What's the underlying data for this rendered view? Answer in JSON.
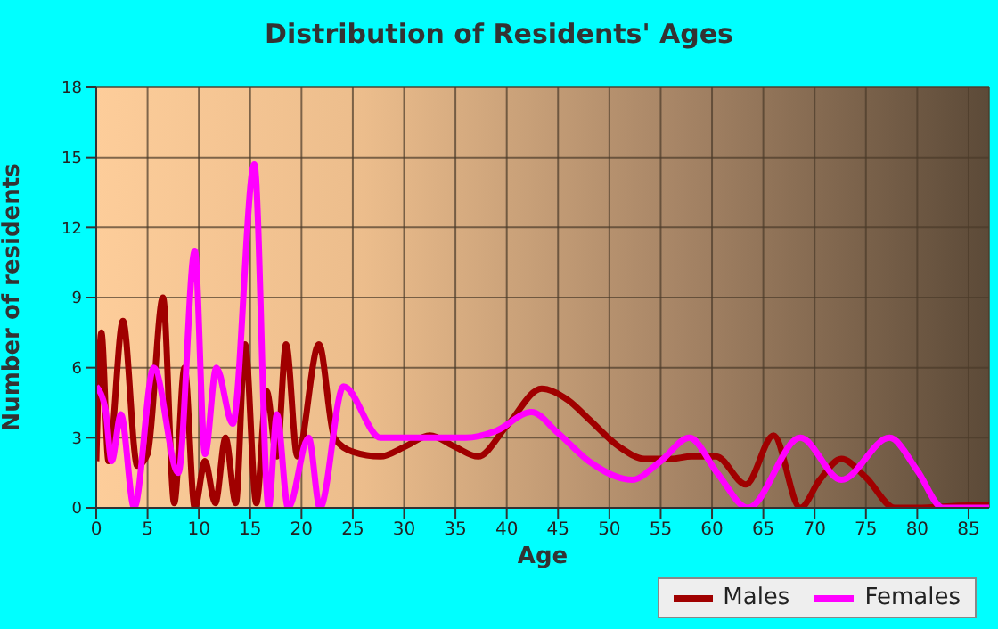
{
  "chart_data": {
    "type": "line",
    "title": "Distribution of Residents' Ages",
    "xlabel": "Age",
    "ylabel": "Number of residents",
    "xlim": [
      0,
      87
    ],
    "xticks": [
      0,
      5,
      10,
      15,
      20,
      25,
      30,
      35,
      40,
      45,
      50,
      55,
      60,
      65,
      70,
      75,
      80,
      85
    ],
    "ylim": [
      0,
      18
    ],
    "yticks": [
      0,
      3,
      6,
      9,
      12,
      15,
      18
    ],
    "grid": true,
    "legend": "bottom right",
    "marker": "none",
    "line_style": "solid",
    "series": [
      {
        "name": "Males",
        "color": "#a00000",
        "x": [
          0,
          0.5,
          1.2,
          2.6,
          4,
          5,
          6.5,
          7.6,
          8.6,
          9.6,
          10.6,
          11.6,
          12.6,
          13.6,
          14.5,
          15.6,
          16.6,
          17.6,
          18.5,
          19.6,
          21.7,
          23.2,
          25,
          27.7,
          30,
          32.5,
          35,
          37.2,
          40,
          43.4,
          46,
          48,
          51,
          53.4,
          56,
          58,
          60.4,
          63.3,
          66,
          68.6,
          70.5,
          72.6,
          75,
          77.8,
          80,
          85,
          87
        ],
        "values": [
          2,
          7.5,
          2,
          8,
          1.8,
          2.3,
          9,
          0.2,
          6,
          0,
          2,
          0.2,
          3,
          0.2,
          7,
          0.2,
          5,
          2.2,
          7,
          2.2,
          7,
          3,
          2.4,
          2.2,
          2.6,
          3.1,
          2.6,
          2.2,
          3.5,
          5.1,
          4.6,
          3.8,
          2.6,
          2.1,
          2.1,
          2.2,
          2.2,
          1,
          3.1,
          0,
          1.2,
          2.1,
          1.3,
          0,
          0,
          0.1,
          0.1
        ]
      },
      {
        "name": "Females",
        "color": "#ff00ff",
        "x": [
          0,
          0.9,
          1.5,
          2.4,
          3.7,
          5.6,
          8,
          9.6,
          10.6,
          11.7,
          13.3,
          15.4,
          16.8,
          17.6,
          18.7,
          20.7,
          21.8,
          24.1,
          27.7,
          33,
          36,
          39,
          42.4,
          45,
          48,
          52.2,
          55,
          57.8,
          60.5,
          63.5,
          68.6,
          72.6,
          77.3,
          80,
          82.5,
          87
        ],
        "values": [
          5.2,
          4.2,
          2,
          4,
          0,
          6,
          1.5,
          11,
          2.3,
          6,
          3.6,
          14.7,
          0,
          4,
          0,
          3,
          0,
          5.2,
          3,
          3,
          3,
          3.3,
          4.1,
          3.2,
          2,
          1.2,
          2,
          3,
          1.5,
          0,
          3,
          1.2,
          3,
          1.6,
          0,
          0
        ]
      }
    ]
  }
}
